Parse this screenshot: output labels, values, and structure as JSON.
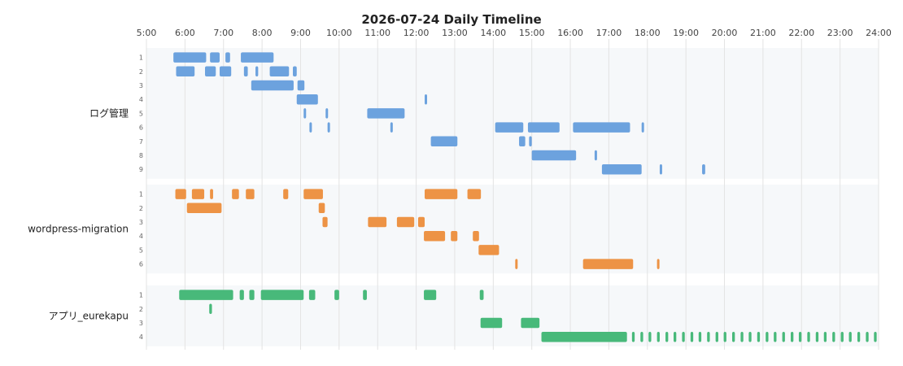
{
  "chart_data": {
    "type": "timeline",
    "title": "2026-07-24 Daily Timeline",
    "x_ticks": [
      "5:00",
      "6:00",
      "7:00",
      "8:00",
      "9:00",
      "10:00",
      "11:00",
      "12:00",
      "13:00",
      "14:00",
      "15:00",
      "16:00",
      "17:00",
      "18:00",
      "19:00",
      "20:00",
      "21:00",
      "22:00",
      "23:00",
      "24:00"
    ],
    "x_range": [
      5,
      24
    ],
    "grid": true,
    "projects": [
      {
        "name": "ログ管理",
        "color": "#6ca2de",
        "lanes": [
          {
            "label": "1",
            "segments": [
              [
                5.7,
                6.55
              ],
              [
                6.65,
                6.9
              ],
              [
                7.05,
                7.17
              ],
              [
                7.45,
                8.3
              ]
            ]
          },
          {
            "label": "2",
            "segments": [
              [
                5.77,
                6.25
              ],
              [
                6.52,
                6.8
              ],
              [
                6.9,
                7.2
              ],
              [
                7.53,
                7.63
              ],
              [
                7.83,
                7.9
              ],
              [
                8.2,
                8.7
              ],
              [
                8.8,
                8.9
              ]
            ]
          },
          {
            "label": "3",
            "segments": [
              [
                7.72,
                8.82
              ],
              [
                8.92,
                9.1
              ]
            ]
          },
          {
            "label": "4",
            "segments": [
              [
                8.9,
                9.45
              ],
              [
                12.22,
                12.28
              ]
            ]
          },
          {
            "label": "5",
            "segments": [
              [
                9.08,
                9.14
              ],
              [
                9.65,
                9.71
              ],
              [
                10.73,
                11.7
              ]
            ]
          },
          {
            "label": "6",
            "segments": [
              [
                9.23,
                9.29
              ],
              [
                9.7,
                9.76
              ],
              [
                11.33,
                11.39
              ],
              [
                14.05,
                14.78
              ],
              [
                14.9,
                15.72
              ],
              [
                16.07,
                17.55
              ],
              [
                17.85,
                17.91
              ]
            ]
          },
          {
            "label": "7",
            "segments": [
              [
                12.38,
                13.07
              ],
              [
                14.67,
                14.83
              ],
              [
                14.93,
                15.0
              ]
            ]
          },
          {
            "label": "8",
            "segments": [
              [
                15.0,
                16.15
              ],
              [
                16.63,
                16.69
              ]
            ]
          },
          {
            "label": "9",
            "segments": [
              [
                16.82,
                17.85
              ],
              [
                18.32,
                18.38
              ],
              [
                19.42,
                19.5
              ]
            ]
          }
        ]
      },
      {
        "name": "wordpress-migration",
        "color": "#ed9345",
        "lanes": [
          {
            "label": "1",
            "segments": [
              [
                5.75,
                6.03
              ],
              [
                6.18,
                6.5
              ],
              [
                6.65,
                6.73
              ],
              [
                7.22,
                7.4
              ],
              [
                7.58,
                7.8
              ],
              [
                8.55,
                8.68
              ],
              [
                9.08,
                9.58
              ],
              [
                12.22,
                13.07
              ],
              [
                13.33,
                13.68
              ]
            ]
          },
          {
            "label": "2",
            "segments": [
              [
                6.05,
                6.95
              ],
              [
                9.47,
                9.63
              ]
            ]
          },
          {
            "label": "3",
            "segments": [
              [
                9.57,
                9.7
              ],
              [
                10.75,
                11.23
              ],
              [
                11.5,
                11.95
              ],
              [
                12.05,
                12.22
              ]
            ]
          },
          {
            "label": "4",
            "segments": [
              [
                12.2,
                12.75
              ],
              [
                12.9,
                13.07
              ],
              [
                13.47,
                13.63
              ]
            ]
          },
          {
            "label": "5",
            "segments": [
              [
                13.62,
                14.15
              ]
            ]
          },
          {
            "label": "6",
            "segments": [
              [
                14.57,
                14.63
              ],
              [
                16.33,
                17.63
              ],
              [
                18.25,
                18.31
              ]
            ]
          }
        ]
      },
      {
        "name": "アプリ_eurekapu",
        "color": "#48b97a",
        "lanes": [
          {
            "label": "1",
            "segments": [
              [
                5.85,
                7.25
              ],
              [
                7.42,
                7.53
              ],
              [
                7.67,
                7.8
              ],
              [
                7.97,
                9.08
              ],
              [
                9.22,
                9.38
              ],
              [
                9.88,
                10.0
              ],
              [
                10.62,
                10.72
              ],
              [
                12.2,
                12.52
              ],
              [
                13.65,
                13.75
              ]
            ]
          },
          {
            "label": "2",
            "segments": [
              [
                6.63,
                6.7
              ]
            ]
          },
          {
            "label": "3",
            "segments": [
              [
                13.67,
                14.23
              ],
              [
                14.72,
                15.2
              ]
            ]
          },
          {
            "label": "4",
            "segments": [
              [
                15.25,
                17.47
              ],
              [
                17.6,
                17.67
              ],
              [
                17.82,
                17.89
              ],
              [
                18.03,
                18.1
              ],
              [
                18.25,
                18.32
              ],
              [
                18.47,
                18.54
              ],
              [
                18.68,
                18.75
              ],
              [
                18.9,
                18.97
              ],
              [
                19.12,
                19.19
              ],
              [
                19.33,
                19.4
              ],
              [
                19.55,
                19.62
              ],
              [
                19.77,
                19.84
              ],
              [
                19.98,
                20.05
              ],
              [
                20.2,
                20.27
              ],
              [
                20.42,
                20.49
              ],
              [
                20.63,
                20.7
              ],
              [
                20.85,
                20.92
              ],
              [
                21.07,
                21.14
              ],
              [
                21.28,
                21.35
              ],
              [
                21.5,
                21.57
              ],
              [
                21.72,
                21.79
              ],
              [
                21.93,
                22.0
              ],
              [
                22.15,
                22.22
              ],
              [
                22.37,
                22.44
              ],
              [
                22.58,
                22.65
              ],
              [
                22.8,
                22.87
              ],
              [
                23.02,
                23.09
              ],
              [
                23.23,
                23.3
              ],
              [
                23.45,
                23.52
              ],
              [
                23.67,
                23.74
              ],
              [
                23.88,
                23.95
              ]
            ]
          }
        ]
      }
    ]
  }
}
